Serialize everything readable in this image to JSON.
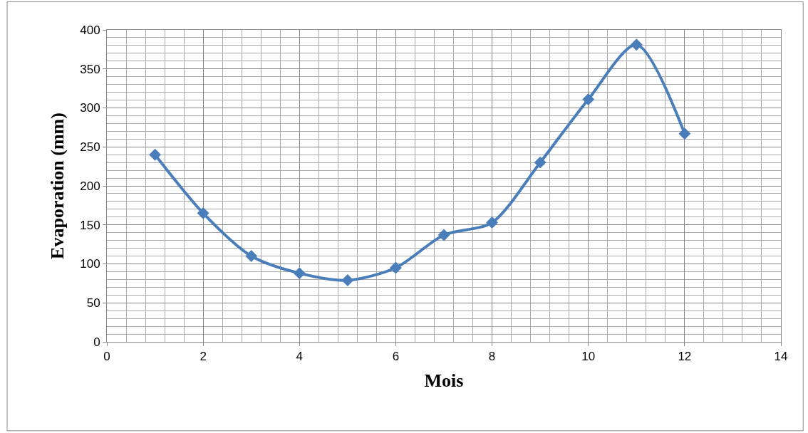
{
  "chart_data": {
    "type": "line",
    "xlabel": "Mois",
    "ylabel": "Evaporation (mm)",
    "x": [
      1,
      2,
      3,
      4,
      5,
      6,
      7,
      8,
      9,
      10,
      11,
      12
    ],
    "series": [
      {
        "color": "#4a7ebb",
        "values": [
          240,
          165,
          110,
          88,
          79,
          95,
          137,
          153,
          230,
          311,
          381,
          267
        ]
      }
    ],
    "xlim": [
      0,
      14
    ],
    "xticks": [
      0,
      2,
      4,
      6,
      8,
      10,
      12,
      14
    ],
    "ylim": [
      0,
      400
    ],
    "yticks": [
      0,
      50,
      100,
      150,
      200,
      250,
      300,
      350,
      400
    ],
    "grid": true,
    "marker": "diamond",
    "line_style": "solid",
    "legend": false
  }
}
